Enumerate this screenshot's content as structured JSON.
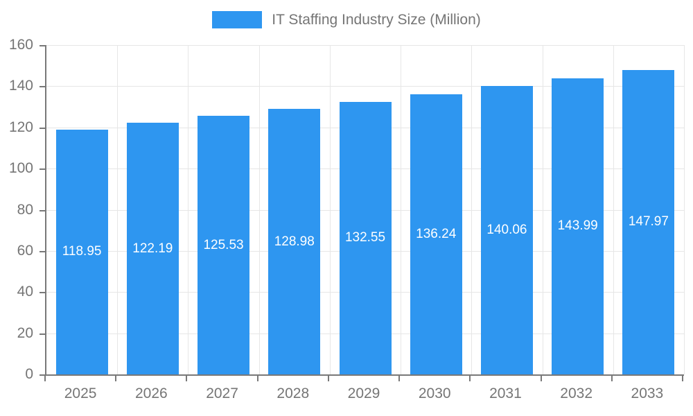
{
  "legend": {
    "label": "IT Staffing Industry Size (Million)",
    "swatch_color": "#2E96F0"
  },
  "colors": {
    "bar": "#2E96F0",
    "bar_label_text": "#ffffff",
    "axis_line": "#787878",
    "axis_text": "#757575",
    "gridline": "#e6e6e6",
    "background": "#ffffff"
  },
  "chart_data": {
    "type": "bar",
    "title": "IT Staffing Industry Size (Million)",
    "categories": [
      "2025",
      "2026",
      "2027",
      "2028",
      "2029",
      "2030",
      "2031",
      "2032",
      "2033"
    ],
    "values": [
      118.95,
      122.19,
      125.53,
      128.98,
      132.55,
      136.24,
      140.06,
      143.99,
      147.97
    ],
    "data_labels": [
      "118.95",
      "122.19",
      "125.53",
      "128.98",
      "132.55",
      "136.24",
      "140.06",
      "143.99",
      "147.97"
    ],
    "xlabel": "",
    "ylabel": "",
    "ylim": [
      0,
      160
    ],
    "yticks": [
      0,
      20,
      40,
      60,
      80,
      100,
      120,
      140,
      160
    ],
    "grid": true,
    "legend_position": "top",
    "bar_color": "#2E96F0",
    "data_label_color": "#ffffff"
  }
}
